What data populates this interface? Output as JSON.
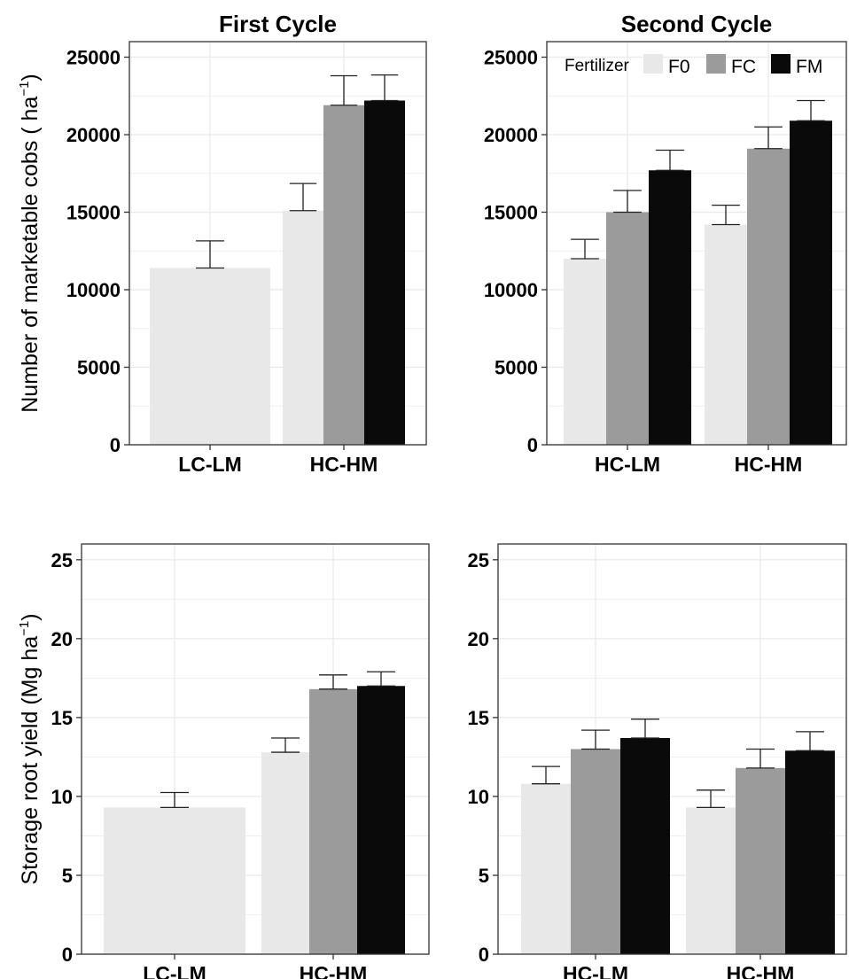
{
  "chart_data": [
    {
      "id": "top-left",
      "type": "bar",
      "title": "First Cycle",
      "ylabel": "Number of marketable cobs ( ha",
      "ylabel_sup": "−1",
      "ylabel_tail": ")",
      "ylim": [
        0,
        26000
      ],
      "yticks": [
        "0",
        "5000",
        "10000",
        "15000",
        "20000",
        "25000"
      ],
      "ytick_values": [
        0,
        5000,
        10000,
        15000,
        20000,
        25000
      ],
      "categories": [
        "LC-LM",
        "HC-HM"
      ],
      "grid": true,
      "series": [
        {
          "name": "F0",
          "values": [
            11400,
            15100
          ],
          "errors": [
            1750,
            1750
          ]
        },
        {
          "name": "FC",
          "values": [
            null,
            21900
          ],
          "errors": [
            null,
            1900
          ]
        },
        {
          "name": "FM",
          "values": [
            null,
            22200
          ],
          "errors": [
            null,
            1650
          ]
        }
      ]
    },
    {
      "id": "top-right",
      "type": "bar",
      "title": "Second Cycle",
      "ylim": [
        0,
        26000
      ],
      "yticks": [
        "0",
        "5000",
        "10000",
        "15000",
        "20000",
        "25000"
      ],
      "ytick_values": [
        0,
        5000,
        10000,
        15000,
        20000,
        25000
      ],
      "categories": [
        "HC-LM",
        "HC-HM"
      ],
      "grid": true,
      "legend": {
        "title": "Fertilizer",
        "position": "top",
        "entries": [
          "F0",
          "FC",
          "FM"
        ]
      },
      "series": [
        {
          "name": "F0",
          "values": [
            12000,
            14200
          ],
          "errors": [
            1250,
            1250
          ]
        },
        {
          "name": "FC",
          "values": [
            15000,
            19100
          ],
          "errors": [
            1400,
            1400
          ]
        },
        {
          "name": "FM",
          "values": [
            17700,
            20900
          ],
          "errors": [
            1300,
            1300
          ]
        }
      ]
    },
    {
      "id": "bottom-left",
      "type": "bar",
      "ylabel": "Storage root yield (Mg ha",
      "ylabel_sup": "−1",
      "ylabel_tail": ")",
      "ylim": [
        0,
        26
      ],
      "yticks": [
        "0",
        "5",
        "10",
        "15",
        "20",
        "25"
      ],
      "ytick_values": [
        0,
        5,
        10,
        15,
        20,
        25
      ],
      "categories": [
        "LC-LM",
        "HC-HM"
      ],
      "grid": true,
      "series": [
        {
          "name": "F0",
          "values": [
            9.3,
            12.8
          ],
          "errors": [
            0.95,
            0.9
          ]
        },
        {
          "name": "FC",
          "values": [
            null,
            16.8
          ],
          "errors": [
            null,
            0.9
          ]
        },
        {
          "name": "FM",
          "values": [
            null,
            17.0
          ],
          "errors": [
            null,
            0.9
          ]
        }
      ]
    },
    {
      "id": "bottom-right",
      "type": "bar",
      "ylim": [
        0,
        26
      ],
      "yticks": [
        "0",
        "5",
        "10",
        "15",
        "20",
        "25"
      ],
      "ytick_values": [
        0,
        5,
        10,
        15,
        20,
        25
      ],
      "categories": [
        "HC-LM",
        "HC-HM"
      ],
      "grid": true,
      "series": [
        {
          "name": "F0",
          "values": [
            10.8,
            9.3
          ],
          "errors": [
            1.1,
            1.1
          ]
        },
        {
          "name": "FC",
          "values": [
            13.0,
            11.8
          ],
          "errors": [
            1.2,
            1.2
          ]
        },
        {
          "name": "FM",
          "values": [
            13.7,
            12.9
          ],
          "errors": [
            1.2,
            1.2
          ]
        }
      ]
    }
  ],
  "colors": {
    "F0": "#e8e8e8",
    "FC": "#9b9b9b",
    "FM": "#0a0a0a",
    "grid": "#ebebeb",
    "axis": "#333333"
  }
}
